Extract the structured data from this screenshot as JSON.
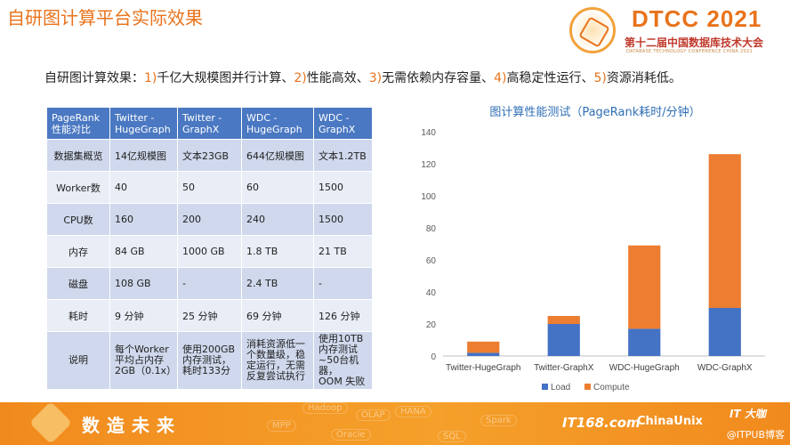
{
  "header": {
    "title": "自研图计算平台实际效果",
    "logo": {
      "brand": "DTCC 2021",
      "conference": "第十二届中国数据库技术大会",
      "subtitle": "DATABASE TECHNOLOGY CONFERENCE CHINA 2021"
    }
  },
  "summary": {
    "prefix": "自研图计算效果：",
    "items": [
      {
        "num": "1)",
        "text": "千亿大规模图并行计算、"
      },
      {
        "num": "2)",
        "text": "性能高效、"
      },
      {
        "num": "3)",
        "text": "无需依赖内存容量、"
      },
      {
        "num": "4)",
        "text": "高稳定性运行、"
      },
      {
        "num": "5)",
        "text": "资源消耗低。"
      }
    ]
  },
  "table": {
    "header": [
      "PageRank\n性能对比",
      "Twitter -\nHugeGraph",
      "Twitter -\nGraphX",
      "WDC -\nHugeGraph",
      "WDC -\nGraphX"
    ],
    "rows": [
      [
        "数据集概览",
        "14亿规模图",
        "文本23GB",
        "644亿规模图",
        "文本1.2TB"
      ],
      [
        "Worker数",
        "40",
        "50",
        "60",
        "1500"
      ],
      [
        "CPU数",
        "160",
        "200",
        "240",
        "1500"
      ],
      [
        "内存",
        "84 GB",
        "1000 GB",
        "1.8 TB",
        "21 TB"
      ],
      [
        "磁盘",
        "108 GB",
        "-",
        "2.4 TB",
        "-"
      ],
      [
        "耗时",
        "9 分钟",
        "25 分钟",
        "69 分钟",
        "126 分钟"
      ],
      [
        "说明",
        "每个Worker\n平均占内存\n2GB（0.1x）",
        "使用200GB\n内存测试，\n耗时133分",
        "消耗资源低一\n个数量级，稳\n定运行，无需\n反复尝试执行",
        "使用10TB\n内存测试\n~50台机器，\nOOM 失败"
      ]
    ]
  },
  "chart_data": {
    "type": "bar",
    "stacked": true,
    "title": "图计算性能测试（PageRank耗时/分钟）",
    "categories": [
      "Twitter-HugeGraph",
      "Twitter-GraphX",
      "WDC-HugeGraph",
      "WDC-GraphX"
    ],
    "series": [
      {
        "name": "Load",
        "color": "#4472c4",
        "values": [
          2,
          20,
          17,
          30
        ]
      },
      {
        "name": "Compute",
        "color": "#ed7d31",
        "values": [
          7,
          5,
          52,
          96
        ]
      }
    ],
    "ylim": [
      0,
      140
    ],
    "yticks": [
      0,
      20,
      40,
      60,
      80,
      100,
      120,
      140
    ],
    "grid": false,
    "legend": "bottom"
  },
  "footer": {
    "slogan": "数造未来",
    "tags": [
      "Hadoop",
      "OLAP",
      "HANA",
      "MPP",
      "Oracle",
      "SQL",
      "Spark"
    ],
    "sponsors": [
      "IT168.com",
      "ChinaUnix",
      "IT 大咖"
    ],
    "watermark": "@ITPUB博客"
  }
}
